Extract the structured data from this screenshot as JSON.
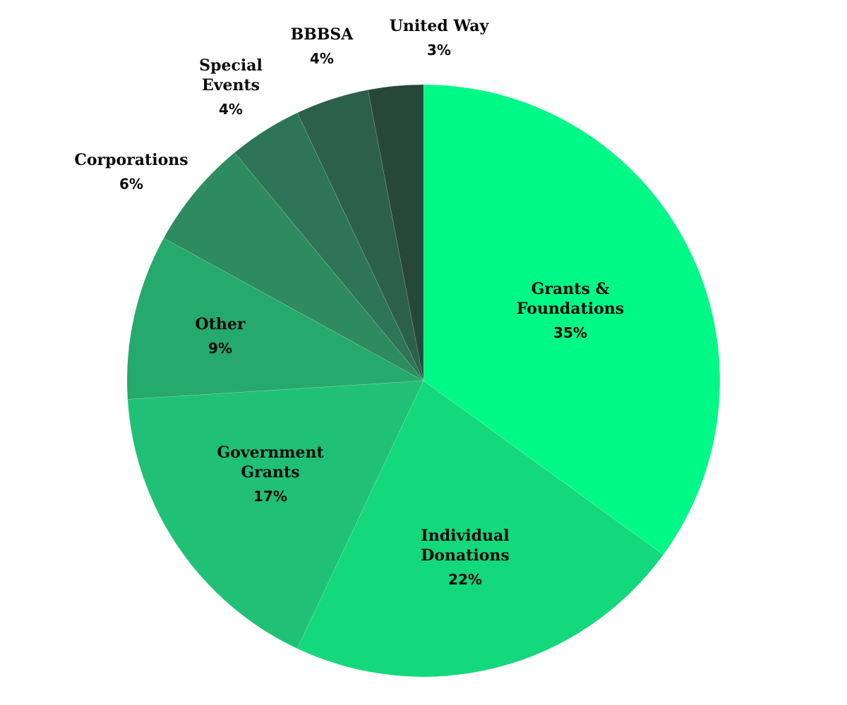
{
  "chart_data": {
    "type": "pie",
    "title": "",
    "start_angle": "12 o'clock",
    "direction": "clockwise",
    "categories": [
      "Grants & Foundations",
      "Individual Donations",
      "Government Grants",
      "Other",
      "Corporations",
      "Special Events",
      "BBBSA",
      "United Way"
    ],
    "values": [
      35,
      22,
      17,
      9,
      6,
      4,
      4,
      3
    ],
    "unit": "%",
    "colors": [
      "#00f986",
      "#14d87c",
      "#20c176",
      "#26a96c",
      "#2d8b5f",
      "#2d7556",
      "#2d604b",
      "#274838"
    ],
    "legend": "none (labels on/near slices)"
  },
  "labels": [
    {
      "name": "Grants &\nFoundations",
      "line1": "Grants &",
      "line2": "Foundations",
      "pct": "35%"
    },
    {
      "line1": "Individual",
      "line2": "Donations",
      "pct": "22%"
    },
    {
      "line1": "Government",
      "line2": "Grants",
      "pct": "17%"
    },
    {
      "line1": "Other",
      "pct": "9%"
    },
    {
      "line1": "Corporations",
      "pct": "6%"
    },
    {
      "line1": "Special",
      "line2": "Events",
      "pct": "4%"
    },
    {
      "line1": "BBBSA",
      "pct": "4%"
    },
    {
      "line1": "United Way",
      "pct": "3%"
    }
  ]
}
